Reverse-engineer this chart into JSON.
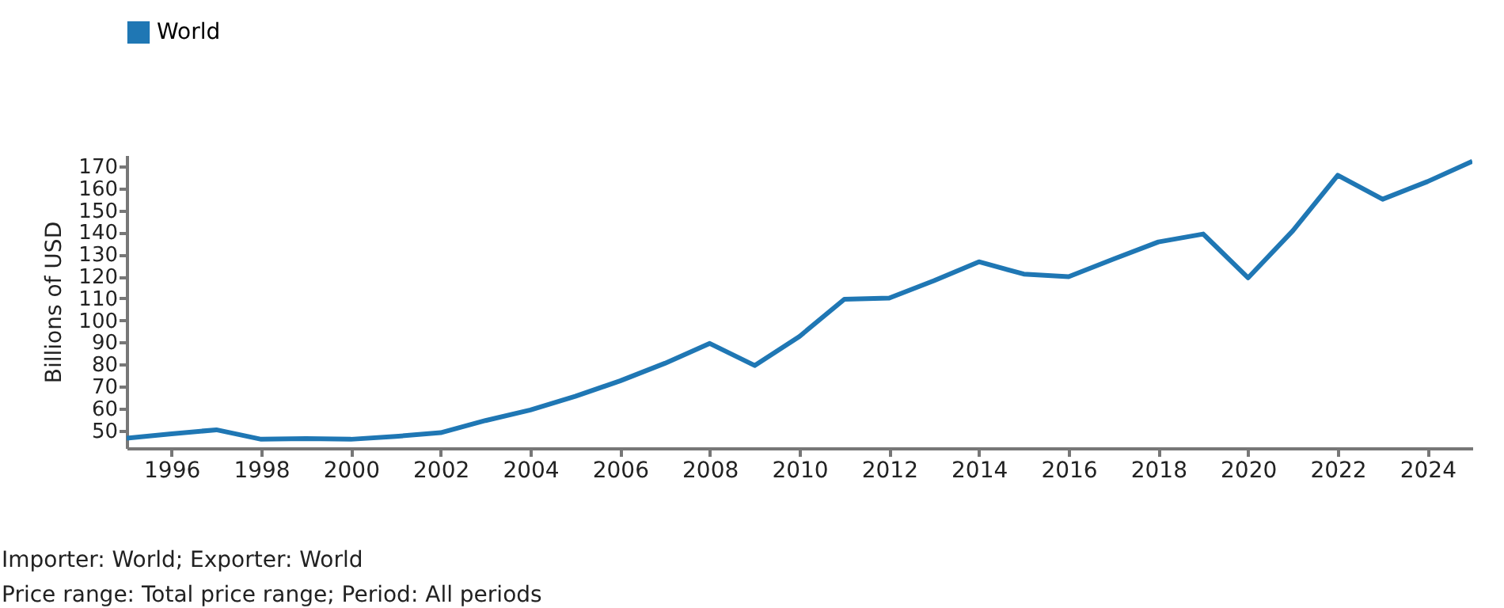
{
  "chart_data": {
    "type": "line",
    "ylabel": "Billions of USD",
    "x": [
      1995,
      1996,
      1997,
      1998,
      1999,
      2000,
      2001,
      2002,
      2003,
      2004,
      2005,
      2006,
      2007,
      2008,
      2009,
      2010,
      2011,
      2012,
      2013,
      2014,
      2015,
      2016,
      2017,
      2018,
      2019,
      2020,
      2021,
      2022,
      2023,
      2024,
      2025
    ],
    "series": [
      {
        "name": "World",
        "color": "#1f77b4",
        "values": [
          46.5,
          48.5,
          50.3,
          46,
          46.3,
          46,
          47.3,
          49,
          54.5,
          59.3,
          65.5,
          72.5,
          80.5,
          89.5,
          79.5,
          92.7,
          109.6,
          110.1,
          118,
          126.6,
          121,
          119.8,
          127.8,
          135.6,
          139.2,
          119.3,
          140.7,
          165.9,
          155,
          163,
          172.2
        ]
      }
    ],
    "xlim": [
      1995,
      2025
    ],
    "xticks": [
      1996,
      1998,
      2000,
      2002,
      2004,
      2006,
      2008,
      2010,
      2012,
      2014,
      2016,
      2018,
      2020,
      2022,
      2024
    ],
    "ylim": [
      42,
      175
    ],
    "yticks": [
      50,
      60,
      70,
      80,
      90,
      100,
      110,
      120,
      130,
      140,
      150,
      160,
      170
    ],
    "grid": false,
    "legend": "top left",
    "marker": "none",
    "line_style": "solid",
    "annotations": [
      "Importer: World; Exporter: World",
      "Price range: Total price range; Period: All periods"
    ]
  }
}
